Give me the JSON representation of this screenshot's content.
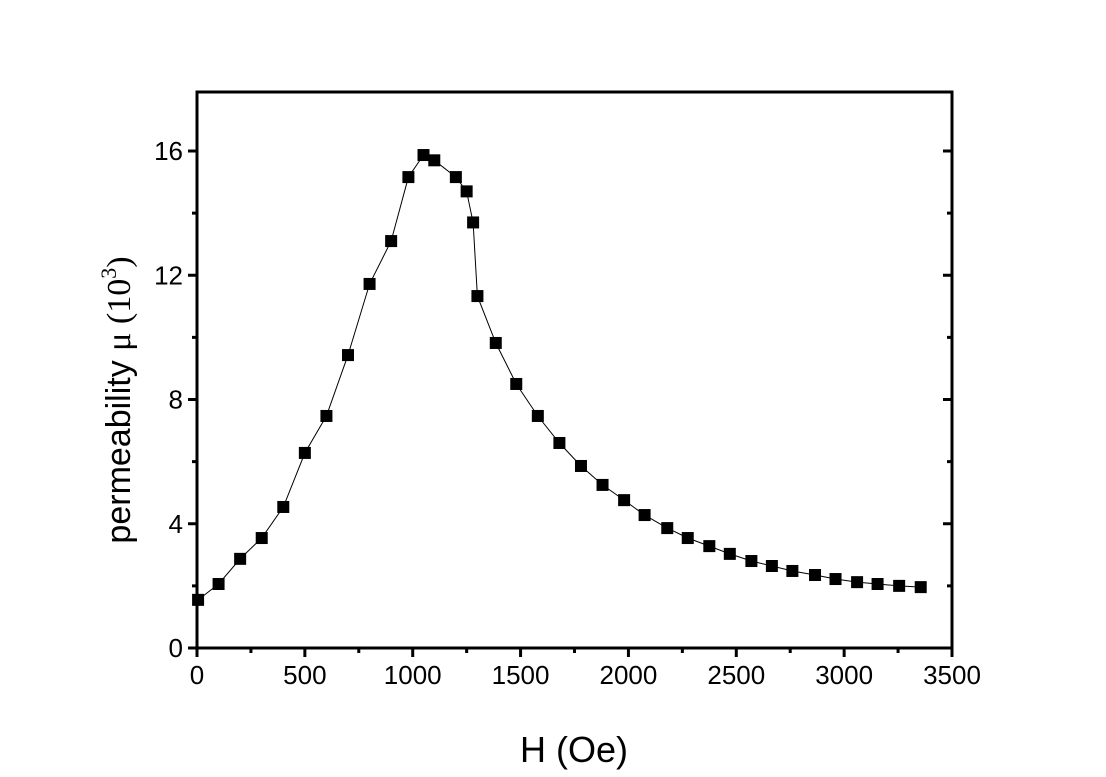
{
  "chart_data": {
    "type": "line",
    "title": "",
    "xlabel": "H (Oe)",
    "ylabel_main": "permeability ",
    "ylabel_symbol": "μ",
    "ylabel_unit_open": " (10",
    "ylabel_unit_exp": "3",
    "ylabel_unit_close": ")",
    "xlim": [
      0,
      3500
    ],
    "ylim": [
      0,
      18
    ],
    "xticks": [
      0,
      500,
      1000,
      1500,
      2000,
      2500,
      3000,
      3500
    ],
    "yticks": [
      0,
      4,
      8,
      12,
      16
    ],
    "grid": false,
    "marker": "square",
    "color": "#000000",
    "series": [
      {
        "name": "permeability",
        "x": [
          5,
          100,
          200,
          300,
          400,
          500,
          600,
          700,
          800,
          900,
          980,
          1050,
          1100,
          1200,
          1250,
          1280,
          1300,
          1385,
          1480,
          1580,
          1680,
          1780,
          1880,
          1980,
          2075,
          2180,
          2275,
          2375,
          2470,
          2570,
          2665,
          2760,
          2865,
          2960,
          3060,
          3155,
          3255,
          3355
        ],
        "y": [
          1.55,
          2.06,
          2.87,
          3.54,
          4.54,
          6.28,
          7.47,
          9.43,
          11.72,
          13.1,
          15.16,
          15.87,
          15.7,
          15.16,
          14.7,
          13.7,
          11.33,
          9.82,
          8.5,
          7.47,
          6.6,
          5.86,
          5.25,
          4.76,
          4.28,
          3.86,
          3.54,
          3.28,
          3.03,
          2.8,
          2.64,
          2.48,
          2.35,
          2.22,
          2.12,
          2.06,
          2.0,
          1.96
        ]
      }
    ]
  }
}
